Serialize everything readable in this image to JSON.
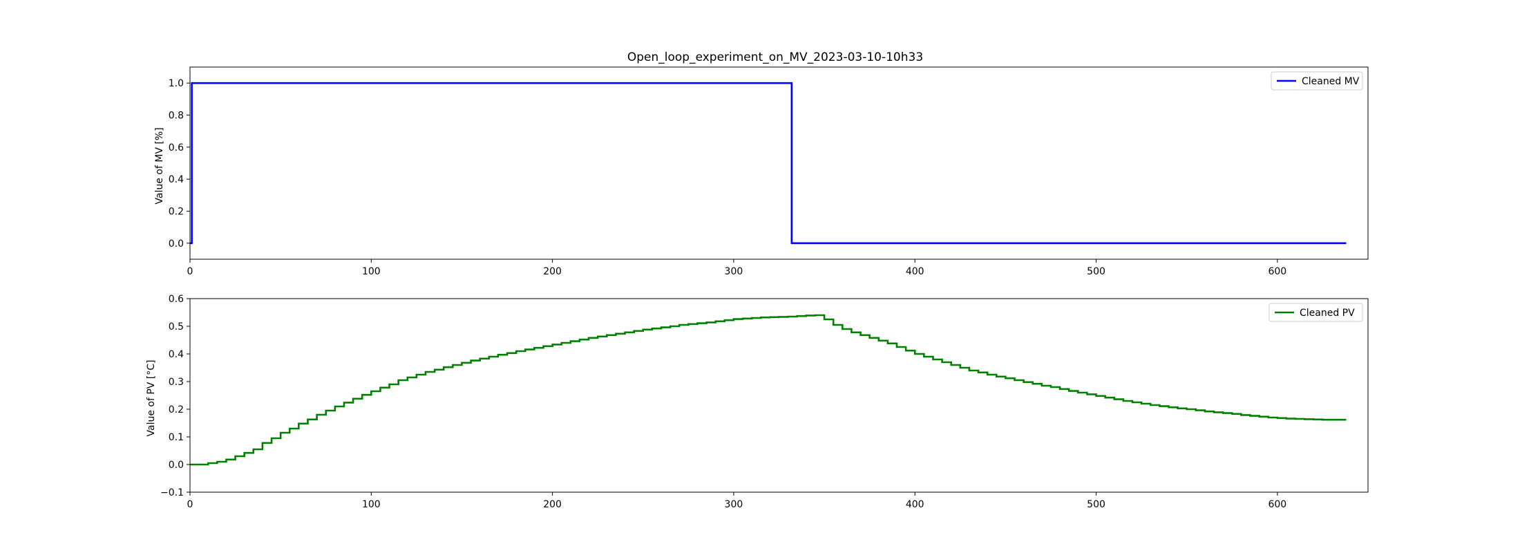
{
  "chart_data": [
    {
      "type": "line",
      "title": "Open_loop_experiment_on_MV_2023-03-10-10h33",
      "xlabel": "",
      "ylabel": "Value of MV [%]",
      "xlim": [
        0,
        650
      ],
      "ylim": [
        -0.1,
        1.1
      ],
      "xticks": [
        0,
        100,
        200,
        300,
        400,
        500,
        600
      ],
      "yticks": [
        0.0,
        0.2,
        0.4,
        0.6,
        0.8,
        1.0
      ],
      "grid": false,
      "legend_position": "top-right",
      "series": [
        {
          "name": "Cleaned MV",
          "color": "#0000ff",
          "step": true,
          "points": [
            [
              0,
              0.0
            ],
            [
              1,
              0.0
            ],
            [
              1,
              1.0
            ],
            [
              332,
              1.0
            ],
            [
              332,
              0.0
            ],
            [
              638,
              0.0
            ]
          ]
        }
      ]
    },
    {
      "type": "line",
      "title": "",
      "xlabel": "",
      "ylabel": "Value of PV [°C]",
      "xlim": [
        0,
        650
      ],
      "ylim": [
        -0.1,
        0.6
      ],
      "xticks": [
        0,
        100,
        200,
        300,
        400,
        500,
        600
      ],
      "yticks": [
        -0.1,
        0.0,
        0.1,
        0.2,
        0.3,
        0.4,
        0.5,
        0.6
      ],
      "grid": false,
      "legend_position": "top-right",
      "series": [
        {
          "name": "Cleaned PV",
          "color": "#008000",
          "step": true,
          "points": [
            [
              0,
              0.0
            ],
            [
              5,
              0.0
            ],
            [
              10,
              0.005
            ],
            [
              15,
              0.01
            ],
            [
              20,
              0.018
            ],
            [
              25,
              0.03
            ],
            [
              30,
              0.042
            ],
            [
              35,
              0.055
            ],
            [
              40,
              0.078
            ],
            [
              45,
              0.095
            ],
            [
              50,
              0.115
            ],
            [
              55,
              0.13
            ],
            [
              60,
              0.148
            ],
            [
              65,
              0.163
            ],
            [
              70,
              0.18
            ],
            [
              75,
              0.195
            ],
            [
              80,
              0.21
            ],
            [
              85,
              0.224
            ],
            [
              90,
              0.238
            ],
            [
              95,
              0.252
            ],
            [
              100,
              0.265
            ],
            [
              105,
              0.278
            ],
            [
              110,
              0.29
            ],
            [
              115,
              0.305
            ],
            [
              120,
              0.315
            ],
            [
              125,
              0.325
            ],
            [
              130,
              0.335
            ],
            [
              135,
              0.343
            ],
            [
              140,
              0.352
            ],
            [
              145,
              0.36
            ],
            [
              150,
              0.368
            ],
            [
              155,
              0.376
            ],
            [
              160,
              0.383
            ],
            [
              165,
              0.39
            ],
            [
              170,
              0.397
            ],
            [
              175,
              0.403
            ],
            [
              180,
              0.41
            ],
            [
              185,
              0.416
            ],
            [
              190,
              0.422
            ],
            [
              195,
              0.428
            ],
            [
              200,
              0.434
            ],
            [
              205,
              0.44
            ],
            [
              210,
              0.446
            ],
            [
              215,
              0.452
            ],
            [
              220,
              0.458
            ],
            [
              225,
              0.463
            ],
            [
              230,
              0.468
            ],
            [
              235,
              0.473
            ],
            [
              240,
              0.478
            ],
            [
              245,
              0.483
            ],
            [
              250,
              0.488
            ],
            [
              255,
              0.492
            ],
            [
              260,
              0.496
            ],
            [
              265,
              0.5
            ],
            [
              270,
              0.505
            ],
            [
              275,
              0.508
            ],
            [
              280,
              0.511
            ],
            [
              285,
              0.514
            ],
            [
              290,
              0.518
            ],
            [
              295,
              0.522
            ],
            [
              300,
              0.526
            ],
            [
              305,
              0.528
            ],
            [
              310,
              0.53
            ],
            [
              315,
              0.532
            ],
            [
              320,
              0.533
            ],
            [
              325,
              0.534
            ],
            [
              330,
              0.535
            ],
            [
              335,
              0.537
            ],
            [
              340,
              0.539
            ],
            [
              345,
              0.54
            ],
            [
              350,
              0.525
            ],
            [
              355,
              0.505
            ],
            [
              360,
              0.49
            ],
            [
              365,
              0.478
            ],
            [
              370,
              0.468
            ],
            [
              375,
              0.458
            ],
            [
              380,
              0.448
            ],
            [
              385,
              0.438
            ],
            [
              390,
              0.425
            ],
            [
              395,
              0.412
            ],
            [
              400,
              0.4
            ],
            [
              405,
              0.39
            ],
            [
              410,
              0.38
            ],
            [
              415,
              0.37
            ],
            [
              420,
              0.36
            ],
            [
              425,
              0.35
            ],
            [
              430,
              0.34
            ],
            [
              435,
              0.333
            ],
            [
              440,
              0.325
            ],
            [
              445,
              0.318
            ],
            [
              450,
              0.312
            ],
            [
              455,
              0.305
            ],
            [
              460,
              0.298
            ],
            [
              465,
              0.292
            ],
            [
              470,
              0.285
            ],
            [
              475,
              0.28
            ],
            [
              480,
              0.273
            ],
            [
              485,
              0.266
            ],
            [
              490,
              0.26
            ],
            [
              495,
              0.254
            ],
            [
              500,
              0.248
            ],
            [
              505,
              0.242
            ],
            [
              510,
              0.236
            ],
            [
              515,
              0.23
            ],
            [
              520,
              0.225
            ],
            [
              525,
              0.22
            ],
            [
              530,
              0.215
            ],
            [
              535,
              0.211
            ],
            [
              540,
              0.207
            ],
            [
              545,
              0.203
            ],
            [
              550,
              0.2
            ],
            [
              555,
              0.196
            ],
            [
              560,
              0.192
            ],
            [
              565,
              0.189
            ],
            [
              570,
              0.186
            ],
            [
              575,
              0.183
            ],
            [
              580,
              0.179
            ],
            [
              585,
              0.176
            ],
            [
              590,
              0.173
            ],
            [
              595,
              0.17
            ],
            [
              600,
              0.168
            ],
            [
              605,
              0.166
            ],
            [
              610,
              0.165
            ],
            [
              615,
              0.164
            ],
            [
              620,
              0.163
            ],
            [
              625,
              0.162
            ],
            [
              630,
              0.162
            ],
            [
              638,
              0.162
            ]
          ]
        }
      ]
    }
  ]
}
